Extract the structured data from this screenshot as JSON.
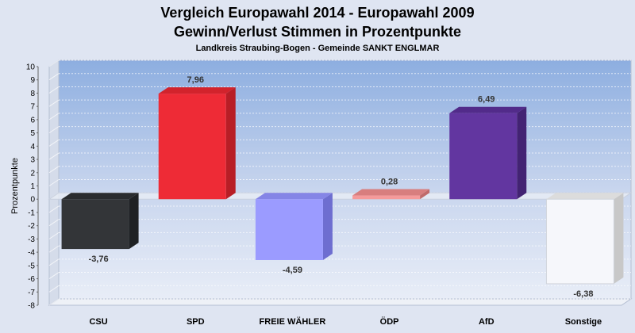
{
  "chart_data": {
    "type": "bar",
    "title": "Vergleich Europawahl 2014 - Europawahl 2009",
    "subtitle": "Gewinn/Verlust Stimmen in Prozentpunkte",
    "caption": "Landkreis Straubing-Bogen - Gemeinde SANKT ENGLMAR",
    "xlabel": "",
    "ylabel": "Prozentpunkte",
    "ylim": [
      -8,
      10
    ],
    "yticks": [
      -8,
      -7,
      -6,
      -5,
      -4,
      -3,
      -2,
      -1,
      0,
      1,
      2,
      3,
      4,
      5,
      6,
      7,
      8,
      9,
      10
    ],
    "grid": true,
    "categories": [
      "CSU",
      "SPD",
      "FREIE WÄHLER",
      "ÖDP",
      "AfD",
      "Sonstige"
    ],
    "values": [
      -3.76,
      7.96,
      -4.59,
      0.28,
      6.49,
      -6.38
    ],
    "value_labels": [
      "-3,76",
      "7,96",
      "-4,59",
      "0,28",
      "6,49",
      "-6,38"
    ],
    "colors": [
      "#333538",
      "#ee2b36",
      "#9b9bff",
      "#f59a9a",
      "#6236a0",
      "#f6f7fb"
    ],
    "side_colors": [
      "#1f2124",
      "#b81e26",
      "#6e6ed0",
      "#c06a6a",
      "#432373",
      "#c8c8c8"
    ],
    "top_colors": [
      "#2a2c2f",
      "#d2232c",
      "#8585e6",
      "#d87e7e",
      "#522b8a",
      "#dcdcdc"
    ]
  }
}
